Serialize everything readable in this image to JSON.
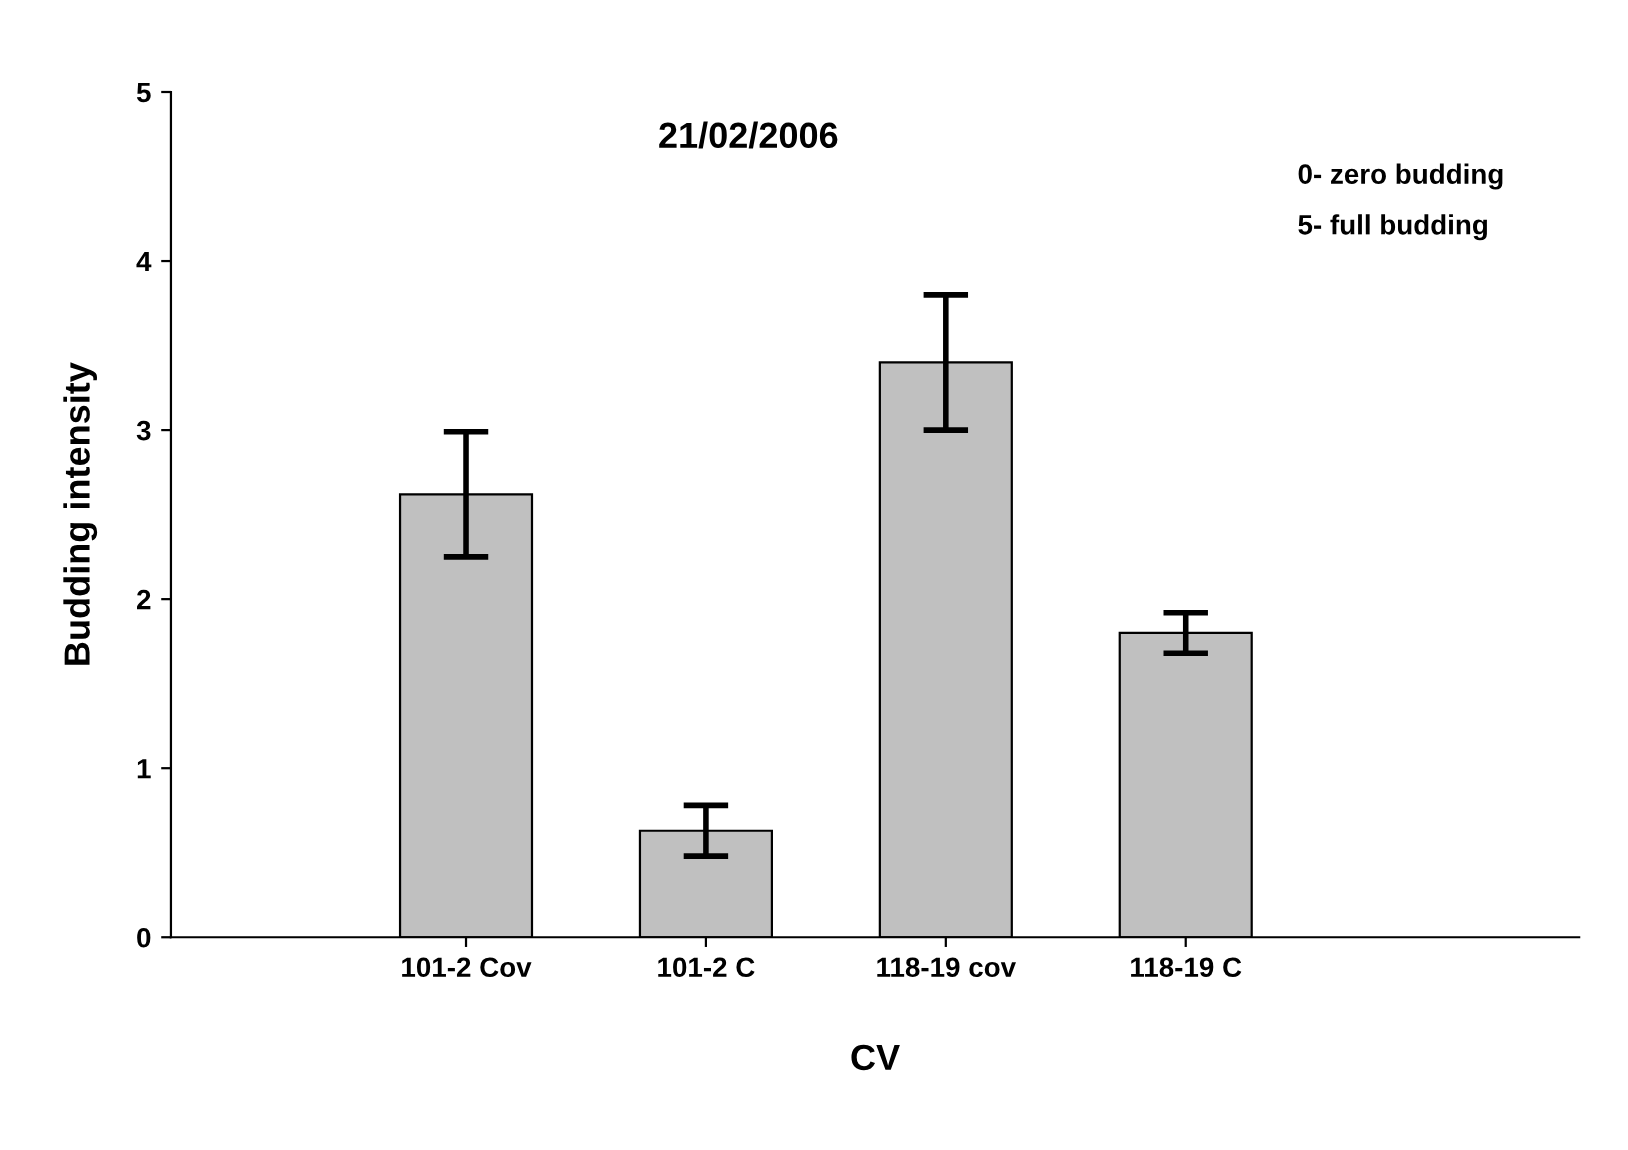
{
  "chart_data": {
    "type": "bar",
    "title": "21/02/2006",
    "xlabel": "CV",
    "ylabel": "Budding intensity",
    "categories": [
      "101-2 Cov",
      "101-2 C",
      "118-19 cov",
      "118-19 C"
    ],
    "values": [
      2.62,
      0.63,
      3.4,
      1.8
    ],
    "errors": [
      0.37,
      0.15,
      0.4,
      0.12
    ],
    "color": "#c0c0c0",
    "ylim": [
      0,
      5
    ],
    "yticks": [
      0,
      1,
      2,
      3,
      4,
      5
    ],
    "grid": false,
    "legend": false,
    "annotations": [
      "0- zero budding",
      "5- full budding"
    ]
  }
}
